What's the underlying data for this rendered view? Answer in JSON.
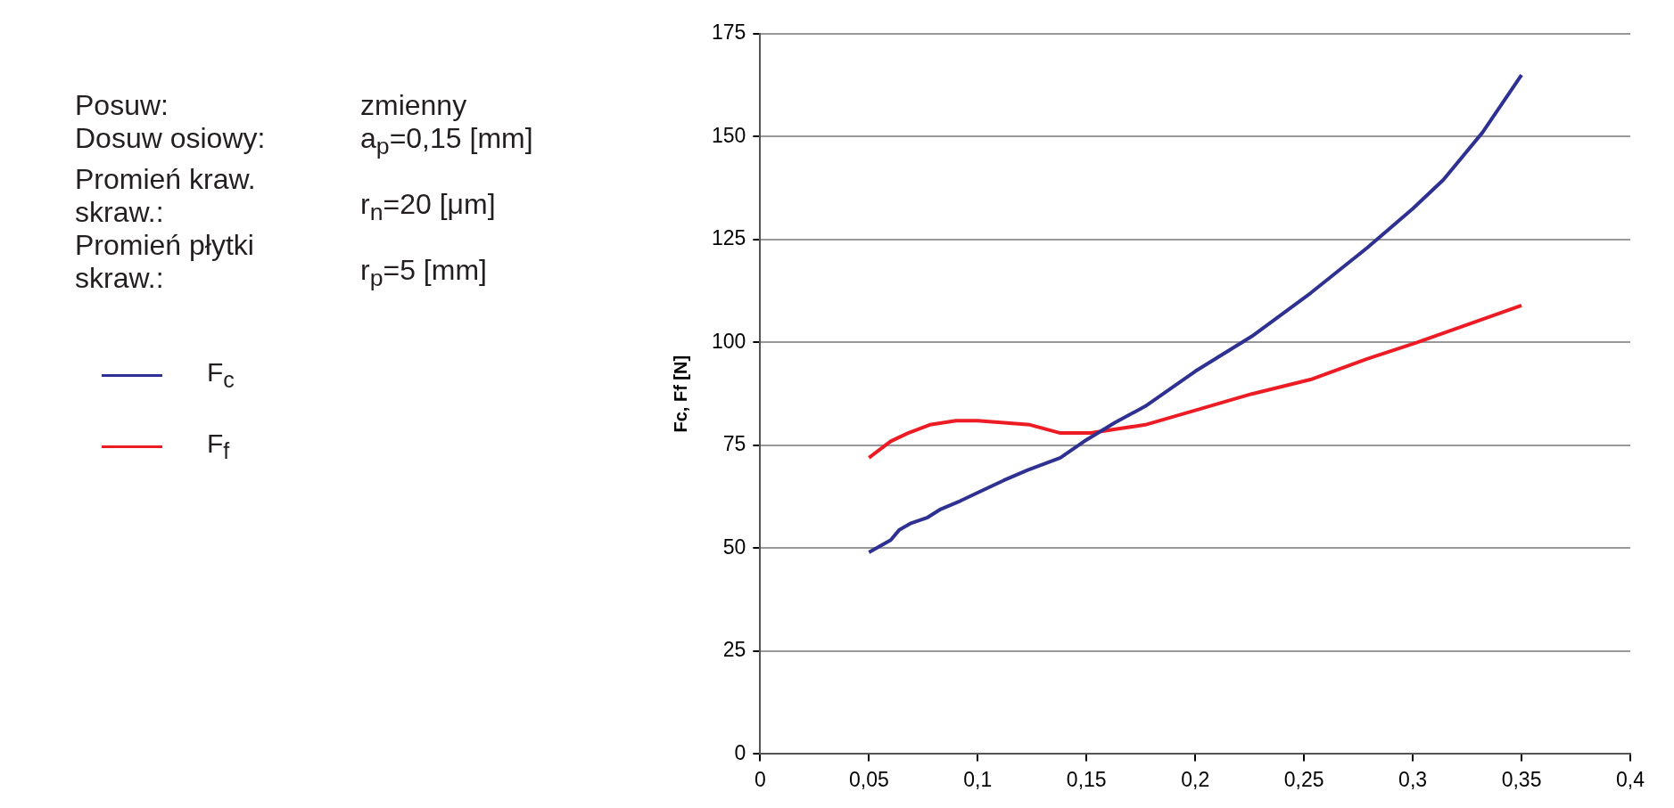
{
  "chart_data": {
    "type": "line",
    "ylabel": "Fc, Ff [N]",
    "annotations": [
      "Posuw:",
      "zmienny",
      "Dosuw osiowy:",
      "a$_{p}$=0,15 [mm]",
      "Promień kraw. skraw.:",
      "r$_{n}$=20 [μm]",
      "Promień płytki skraw.:",
      "r$_{p}$=5 [mm]"
    ],
    "series": [
      {
        "name": "F$_{c}$",
        "color": "#2e3192",
        "x": [
          0.05,
          0.06,
          0.064,
          0.069,
          0.077,
          0.083,
          0.092,
          0.1,
          0.112,
          0.123,
          0.138,
          0.149,
          0.163,
          0.177,
          0.2,
          0.226,
          0.253,
          0.279,
          0.3,
          0.314,
          0.332,
          0.35
        ],
        "values": [
          49,
          52,
          54.5,
          56,
          57.5,
          59.5,
          61.5,
          63.5,
          66.5,
          69,
          72,
          76,
          80.5,
          84.5,
          93,
          101.5,
          112,
          123,
          132.5,
          139.5,
          151,
          165
        ]
      },
      {
        "name": "F$_{f}$",
        "color": "#ed1c24",
        "x": [
          0.05,
          0.06,
          0.068,
          0.078,
          0.09,
          0.1,
          0.124,
          0.138,
          0.152,
          0.164,
          0.177,
          0.2,
          0.226,
          0.253,
          0.279,
          0.302,
          0.35
        ],
        "values": [
          72,
          76,
          78,
          80,
          81,
          81,
          80,
          78,
          78,
          79,
          80,
          83.5,
          87.5,
          91,
          96,
          100,
          109
        ]
      }
    ],
    "xlim": [
      0,
      0.4
    ],
    "xticks": [
      0,
      {
        "value": 0.05,
        "label": "0,05"
      },
      {
        "value": 0.1,
        "label": "0,1"
      },
      {
        "value": 0.15,
        "label": "0,15"
      },
      {
        "value": 0.2,
        "label": "0,2"
      },
      {
        "value": 0.25,
        "label": "0,25"
      },
      {
        "value": 0.3,
        "label": "0,3"
      },
      {
        "value": 0.35,
        "label": "0,35"
      },
      {
        "value": 0.4,
        "label": "0,4"
      }
    ],
    "ylim": [
      0,
      175
    ],
    "yticks": [
      0,
      25,
      50,
      75,
      100,
      125,
      150,
      175
    ],
    "grid": "y",
    "legend": "left",
    "marker": "none",
    "line_style": "solid"
  }
}
